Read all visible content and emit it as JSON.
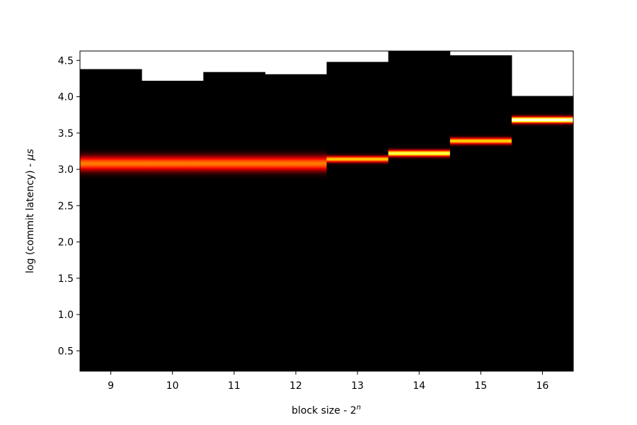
{
  "chart_data": {
    "type": "heatmap",
    "title": "",
    "xlabel": "block size - 2",
    "xlabel_superscript": "n",
    "ylabel": "log (commit latency) - ",
    "ylabel_unit": "μs",
    "categories": [
      "9",
      "10",
      "11",
      "12",
      "13",
      "14",
      "15",
      "16"
    ],
    "xlim": [
      8.5,
      16.5
    ],
    "ylim": [
      0.22,
      4.63
    ],
    "y_ticks": [
      "0.5",
      "1.0",
      "1.5",
      "2.0",
      "2.5",
      "3.0",
      "3.5",
      "4.0",
      "4.5"
    ],
    "grid": false,
    "colormap": "hot",
    "background_color": "#000000",
    "columns": [
      {
        "x": 9,
        "y_max": 4.38,
        "peak": 3.08,
        "intensity": 0.55,
        "spread": 0.07
      },
      {
        "x": 10,
        "y_max": 4.22,
        "peak": 3.08,
        "intensity": 0.55,
        "spread": 0.07
      },
      {
        "x": 11,
        "y_max": 4.34,
        "peak": 3.08,
        "intensity": 0.55,
        "spread": 0.07
      },
      {
        "x": 12,
        "y_max": 4.31,
        "peak": 3.08,
        "intensity": 0.55,
        "spread": 0.07
      },
      {
        "x": 13,
        "y_max": 4.48,
        "peak": 3.14,
        "intensity": 0.68,
        "spread": 0.03
      },
      {
        "x": 14,
        "y_max": 4.63,
        "peak": 3.22,
        "intensity": 0.85,
        "spread": 0.03
      },
      {
        "x": 15,
        "y_max": 4.57,
        "peak": 3.39,
        "intensity": 0.7,
        "spread": 0.03
      },
      {
        "x": 16,
        "y_max": 4.01,
        "peak": 3.68,
        "intensity": 1.0,
        "spread": 0.03
      }
    ]
  }
}
